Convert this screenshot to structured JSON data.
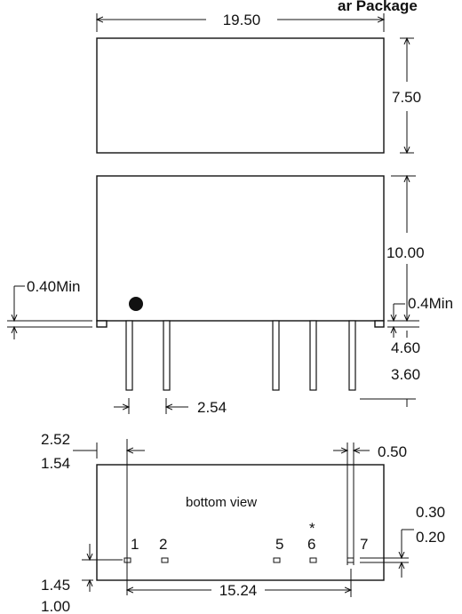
{
  "header": {
    "title_fragment": "ar Package"
  },
  "top_view": {
    "width": "19.50",
    "depth": "7.50"
  },
  "side_view": {
    "height": "10.00",
    "standoff_left": "0.40Min",
    "standoff_right": "0.4Min",
    "pin_length_max": "4.60",
    "pin_length_min": "3.60",
    "pin_pitch": "2.54"
  },
  "bottom_view": {
    "caption": "bottom view",
    "first_pin_offset_max": "2.52",
    "first_pin_offset_min": "1.54",
    "pin_to_edge": "0.50",
    "pad_height_max": "0.30",
    "pad_height_min": "0.20",
    "row_offset_max": "1.45",
    "row_offset_min": "1.00",
    "pin_span": "15.24",
    "marker": "*",
    "pins": [
      "1",
      "2",
      "5",
      "6",
      "7"
    ]
  }
}
